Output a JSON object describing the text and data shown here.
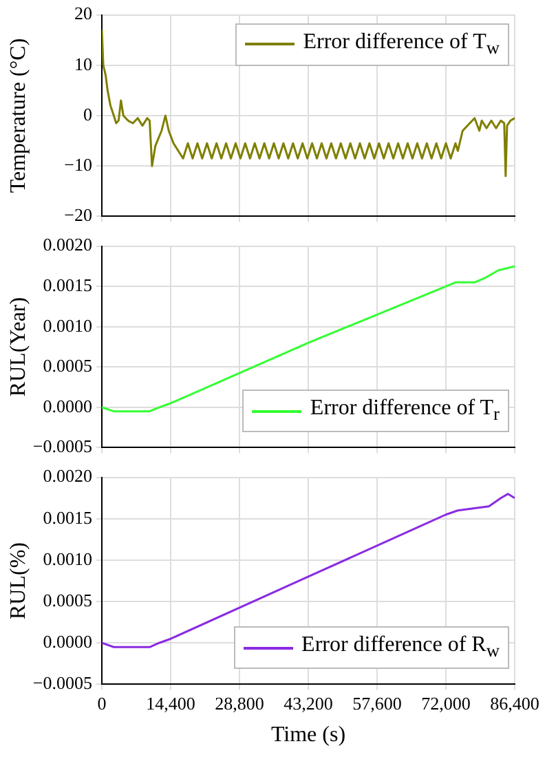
{
  "chart_data": [
    {
      "type": "line",
      "ylabel": "Temperature (°C)",
      "legend": "top right",
      "grid": true,
      "marker": "none",
      "line_style": "solid",
      "tick_labels": "y",
      "xlim": [
        0,
        86400
      ],
      "xticks": [
        0,
        14400,
        28800,
        43200,
        57600,
        72000,
        86400
      ],
      "ylim": [
        -20,
        20
      ],
      "yticks": [
        {
          "value": -20,
          "label": "−20"
        },
        {
          "value": -10,
          "label": "−10"
        },
        0,
        10,
        20
      ],
      "series": [
        {
          "name": "Error difference of T$_{w}$",
          "color": "#7f7f00",
          "x": [
            0,
            300,
            800,
            1200,
            1800,
            2500,
            3000,
            3500,
            4000,
            4500,
            5500,
            6500,
            7500,
            8500,
            9500,
            10000,
            10500,
            11200,
            12500,
            13300,
            14000,
            15000,
            16000,
            17000,
            18000,
            19000,
            20000,
            21000,
            22000,
            23000,
            24000,
            25000,
            26000,
            27000,
            28000,
            29000,
            30000,
            31000,
            32000,
            33000,
            34000,
            35000,
            36000,
            37000,
            38000,
            39000,
            40000,
            41000,
            42000,
            43000,
            44000,
            45000,
            46000,
            47000,
            48000,
            49000,
            50000,
            51000,
            52000,
            53000,
            54000,
            55000,
            56000,
            57000,
            58000,
            59000,
            60000,
            61000,
            62000,
            63000,
            64000,
            65000,
            66000,
            67000,
            68000,
            69000,
            70000,
            71000,
            72000,
            73000,
            74000,
            74500,
            75500,
            77000,
            78000,
            79000,
            79500,
            80500,
            81500,
            82500,
            83500,
            84200,
            84500,
            84800,
            85500,
            86400
          ],
          "values": [
            17,
            10,
            8,
            5,
            2,
            0,
            -1.5,
            -1,
            3,
            0,
            -1,
            -1.5,
            -0.5,
            -2,
            -0.5,
            -1,
            -10,
            -6,
            -3,
            0,
            -3,
            -5.5,
            -7,
            -8.5,
            -5.5,
            -8.5,
            -5.5,
            -8.5,
            -5.5,
            -8.5,
            -5.5,
            -8.5,
            -5.5,
            -8.5,
            -5.5,
            -8.5,
            -5.5,
            -8.5,
            -5.5,
            -8.5,
            -5.5,
            -8.5,
            -5.5,
            -8.5,
            -5.5,
            -8.5,
            -5.5,
            -8.5,
            -5.5,
            -8.5,
            -5.5,
            -8.5,
            -5.5,
            -8.5,
            -5.5,
            -8.5,
            -5.5,
            -8.5,
            -5.5,
            -8.5,
            -5.5,
            -8.5,
            -5.5,
            -8.5,
            -5.5,
            -8.5,
            -5.5,
            -8.5,
            -5.5,
            -8.5,
            -5.5,
            -8.5,
            -5.5,
            -8.5,
            -5.5,
            -8.5,
            -5.5,
            -8.5,
            -5.5,
            -8.5,
            -5.5,
            -7,
            -3,
            -1.5,
            -0.5,
            -3,
            -1,
            -2.5,
            -1,
            -2.5,
            -1,
            -1.5,
            -12,
            -2,
            -1,
            -0.5
          ]
        }
      ]
    },
    {
      "type": "line",
      "ylabel": "RUL(Year)",
      "legend": "bottom right",
      "grid": true,
      "marker": "none",
      "line_style": "solid",
      "tick_labels": "y",
      "xlim": [
        0,
        86400
      ],
      "xticks": [
        0,
        14400,
        28800,
        43200,
        57600,
        72000,
        86400
      ],
      "ylim": [
        -0.0005,
        0.002
      ],
      "yticks": [
        {
          "value": -0.0005,
          "label": "−0.0005"
        },
        {
          "value": 0,
          "label": "0.0000"
        },
        {
          "value": 0.0005,
          "label": "0.0005"
        },
        {
          "value": 0.001,
          "label": "0.0010"
        },
        {
          "value": 0.0015,
          "label": "0.0015"
        },
        {
          "value": 0.002,
          "label": "0.0020"
        }
      ],
      "series": [
        {
          "name": "Error difference of T$_{r}$",
          "color": "#33ff33",
          "x": [
            0,
            2500,
            10000,
            12000,
            14400,
            43200,
            72000,
            74000,
            78000,
            80000,
            83000,
            86400
          ],
          "values": [
            0,
            -5e-05,
            -5e-05,
            0,
            5e-05,
            0.0008,
            0.0015,
            0.00155,
            0.00155,
            0.0016,
            0.0017,
            0.00175
          ]
        }
      ]
    },
    {
      "type": "line",
      "xlabel": "Time (s)",
      "ylabel": "RUL(%)",
      "legend": "bottom right",
      "grid": true,
      "marker": "none",
      "line_style": "solid",
      "xlim": [
        0,
        86400
      ],
      "xticks": [
        0,
        {
          "value": 14400,
          "label": "14,400"
        },
        {
          "value": 28800,
          "label": "28,800"
        },
        {
          "value": 43200,
          "label": "43,200"
        },
        {
          "value": 57600,
          "label": "57,600"
        },
        {
          "value": 72000,
          "label": "72,000"
        },
        {
          "value": 86400,
          "label": "86,400"
        }
      ],
      "ylim": [
        -0.0005,
        0.002
      ],
      "yticks": [
        {
          "value": -0.0005,
          "label": "−0.0005"
        },
        {
          "value": 0,
          "label": "0.0000"
        },
        {
          "value": 0.0005,
          "label": "0.0005"
        },
        {
          "value": 0.001,
          "label": "0.0010"
        },
        {
          "value": 0.0015,
          "label": "0.0015"
        },
        {
          "value": 0.002,
          "label": "0.0020"
        }
      ],
      "series": [
        {
          "name": "Error difference of R$_{w}$",
          "color": "#8a2be2",
          "x": [
            0,
            2500,
            10000,
            12000,
            14400,
            43200,
            72000,
            74500,
            81000,
            83500,
            85000,
            86400
          ],
          "values": [
            0,
            -5e-05,
            -5e-05,
            0,
            5e-05,
            0.0008,
            0.00155,
            0.0016,
            0.00165,
            0.00175,
            0.0018,
            0.00175
          ]
        }
      ]
    }
  ]
}
